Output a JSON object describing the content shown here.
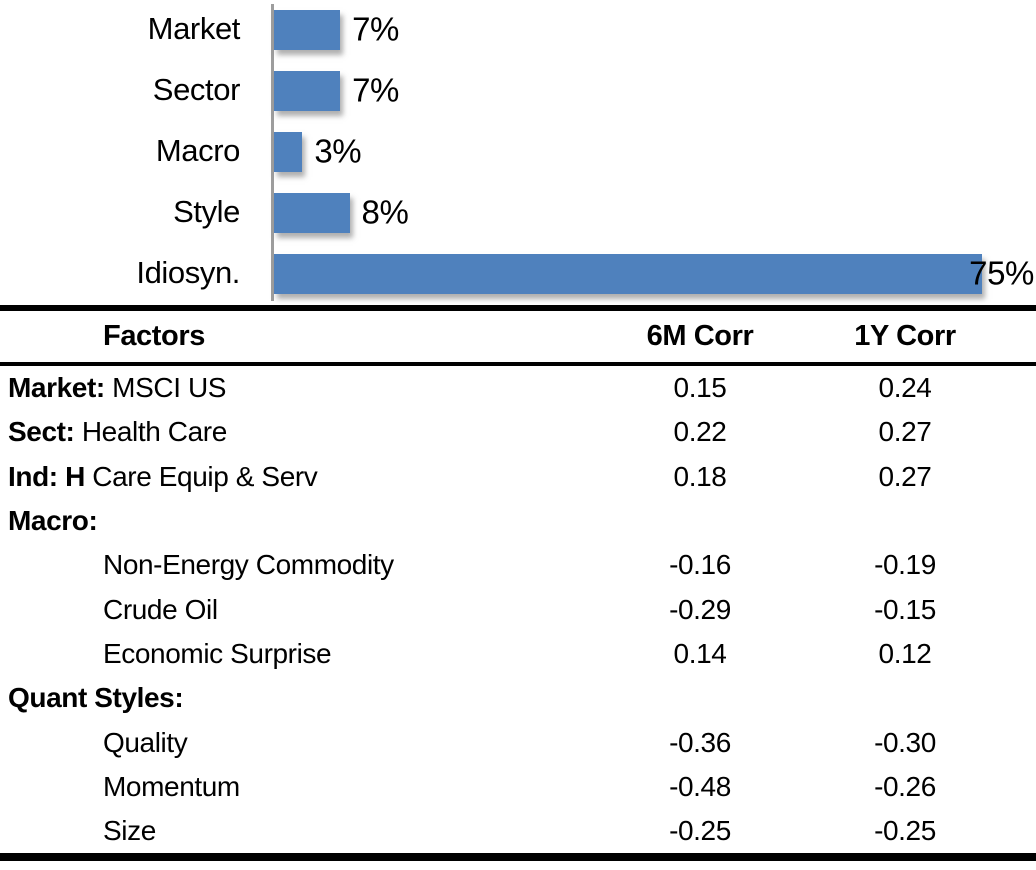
{
  "accent_color": "#4f81bd",
  "axis_color": "#9d9d9d",
  "chart_data": {
    "type": "bar",
    "orientation": "horizontal",
    "title": "",
    "xlabel": "",
    "ylabel": "",
    "categories": [
      "Market",
      "Sector",
      "Macro",
      "Style",
      "Idiosyn."
    ],
    "values": [
      7,
      7,
      3,
      8,
      75
    ],
    "value_labels": [
      "7%",
      "7%",
      "3%",
      "8%",
      "75%"
    ],
    "xlim": [
      0,
      75
    ],
    "bar_color": "#4f81bd",
    "grid": false,
    "legend": false
  },
  "table": {
    "columns": [
      "Factors",
      "6M Corr",
      "1Y Corr"
    ],
    "rows": [
      {
        "bold": "Market:",
        "label": " MSCI US",
        "indent": false,
        "corr6m": "0.15",
        "corr1y": "0.24"
      },
      {
        "bold": "Sect:",
        "label": " Health Care",
        "indent": false,
        "corr6m": "0.22",
        "corr1y": "0.27"
      },
      {
        "bold": "Ind: H",
        "label": " Care Equip & Serv",
        "indent": false,
        "corr6m": "0.18",
        "corr1y": "0.27"
      },
      {
        "bold": "Macro:",
        "label": "",
        "indent": false,
        "corr6m": "",
        "corr1y": ""
      },
      {
        "bold": "",
        "label": "Non-Energy Commodity",
        "indent": true,
        "corr6m": "-0.16",
        "corr1y": "-0.19"
      },
      {
        "bold": "",
        "label": "Crude Oil",
        "indent": true,
        "corr6m": "-0.29",
        "corr1y": "-0.15"
      },
      {
        "bold": "",
        "label": "Economic Surprise",
        "indent": true,
        "corr6m": "0.14",
        "corr1y": "0.12"
      },
      {
        "bold": "Quant Styles:",
        "label": "",
        "indent": false,
        "corr6m": "",
        "corr1y": ""
      },
      {
        "bold": "",
        "label": "Quality",
        "indent": true,
        "corr6m": "-0.36",
        "corr1y": "-0.30"
      },
      {
        "bold": "",
        "label": "Momentum",
        "indent": true,
        "corr6m": "-0.48",
        "corr1y": "-0.26"
      },
      {
        "bold": "",
        "label": "Size",
        "indent": true,
        "corr6m": "-0.25",
        "corr1y": "-0.25"
      }
    ]
  }
}
